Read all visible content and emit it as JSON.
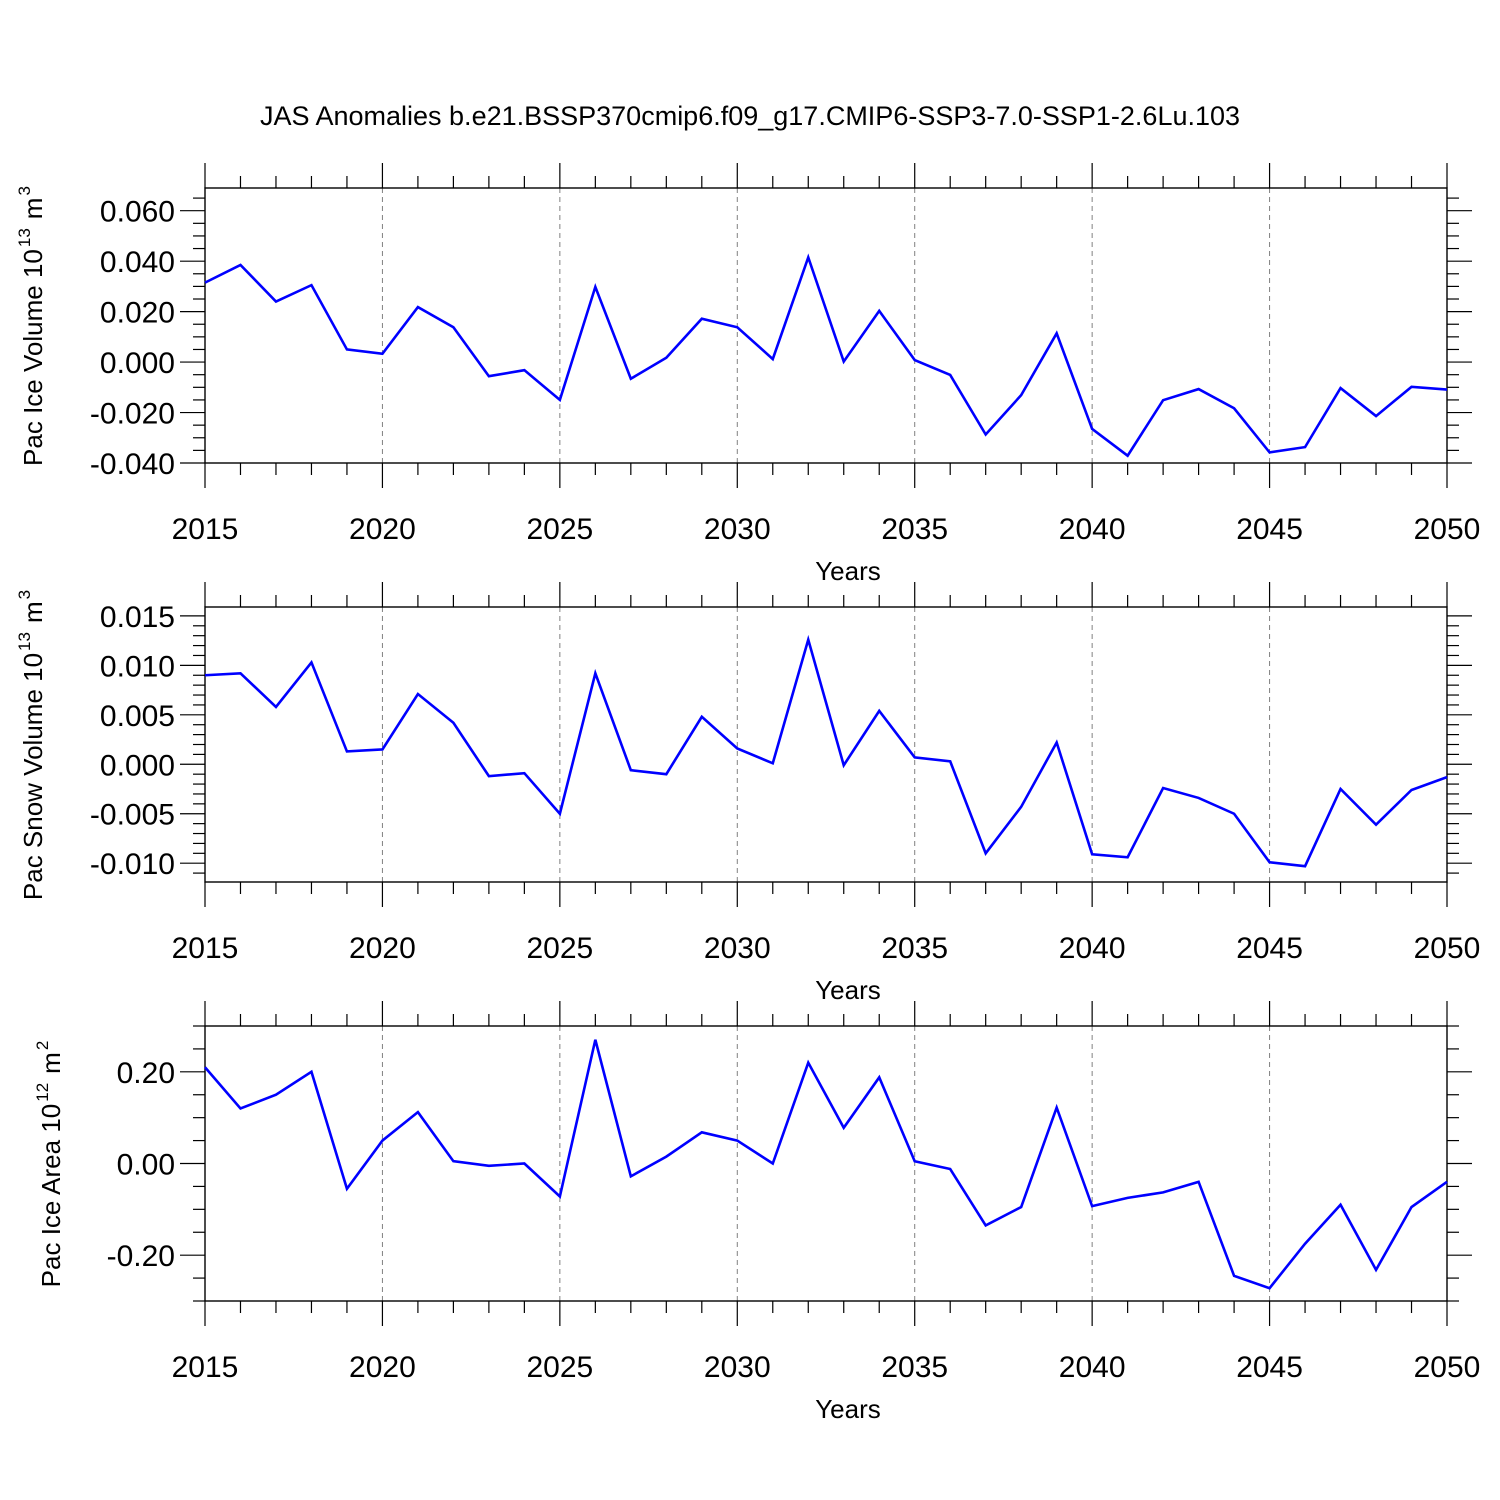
{
  "figure": {
    "title": "JAS Anomalies b.e21.BSSP370cmip6.f09_g17.CMIP6-SSP3-7.0-SSP1-2.6Lu.103"
  },
  "colors": {
    "line": "#0000ff",
    "axis": "#000000",
    "grid": "#808080",
    "background": "#ffffff"
  },
  "chart_data": [
    {
      "type": "line",
      "ylabel_main": "Pac Ice Volume 10",
      "ylabel_exp": "13",
      "ylabel_unit": "m",
      "ylabel_unit_exp": "3",
      "xlabel": "Years",
      "xlim": [
        2015,
        2050
      ],
      "ylim": [
        -0.04,
        0.069
      ],
      "x_ticks": [
        2015,
        2020,
        2025,
        2030,
        2035,
        2040,
        2045,
        2050
      ],
      "y_ticks": [
        -0.04,
        -0.02,
        0.0,
        0.02,
        0.04,
        0.06
      ],
      "y_tick_labels": [
        "-0.040",
        "-0.020",
        "0.000",
        "0.020",
        "0.040",
        "0.060"
      ],
      "y_minor_step": 0.005,
      "x_minor_step": 1,
      "grid": "vertical-dashed-at-major-x",
      "legend": "none",
      "series": [
        {
          "color": "#0000ff",
          "x": [
            2015,
            2016,
            2017,
            2018,
            2019,
            2020,
            2021,
            2022,
            2023,
            2024,
            2025,
            2026,
            2027,
            2028,
            2029,
            2030,
            2031,
            2032,
            2033,
            2034,
            2035,
            2036,
            2037,
            2038,
            2039,
            2040,
            2041,
            2042,
            2043,
            2044,
            2045,
            2046,
            2047,
            2048,
            2049,
            2050
          ],
          "y": [
            0.0315,
            0.0385,
            0.024,
            0.0305,
            0.005,
            0.0033,
            0.0218,
            0.0138,
            -0.0056,
            -0.0032,
            -0.015,
            0.0298,
            -0.0066,
            0.0017,
            0.0172,
            0.0138,
            0.0012,
            0.0415,
            0.0002,
            0.0203,
            0.0008,
            -0.0051,
            -0.0287,
            -0.0131,
            0.0114,
            -0.0265,
            -0.0371,
            -0.0151,
            -0.0107,
            -0.0183,
            -0.0358,
            -0.0337,
            -0.0103,
            -0.0214,
            -0.0098,
            -0.0109
          ]
        }
      ]
    },
    {
      "type": "line",
      "ylabel_main": "Pac Snow Volume 10",
      "ylabel_exp": "13",
      "ylabel_unit": "m",
      "ylabel_unit_exp": "3",
      "xlabel": "Years",
      "xlim": [
        2015,
        2050
      ],
      "ylim": [
        -0.0119,
        0.0159
      ],
      "x_ticks": [
        2015,
        2020,
        2025,
        2030,
        2035,
        2040,
        2045,
        2050
      ],
      "y_ticks": [
        -0.01,
        -0.005,
        0.0,
        0.005,
        0.01,
        0.015
      ],
      "y_tick_labels": [
        "-0.010",
        "-0.005",
        "0.000",
        "0.005",
        "0.010",
        "0.015"
      ],
      "y_minor_step": 0.001,
      "x_minor_step": 1,
      "grid": "vertical-dashed-at-major-x",
      "legend": "none",
      "series": [
        {
          "color": "#0000ff",
          "x": [
            2015,
            2016,
            2017,
            2018,
            2019,
            2020,
            2021,
            2022,
            2023,
            2024,
            2025,
            2026,
            2027,
            2028,
            2029,
            2030,
            2031,
            2032,
            2033,
            2034,
            2035,
            2036,
            2037,
            2038,
            2039,
            2040,
            2041,
            2042,
            2043,
            2044,
            2045,
            2046,
            2047,
            2048,
            2049,
            2050
          ],
          "y": [
            0.009,
            0.0092,
            0.0058,
            0.0103,
            0.0013,
            0.0015,
            0.0071,
            0.0042,
            -0.0012,
            -0.0009,
            -0.005,
            0.0092,
            -0.0006,
            -0.001,
            0.0048,
            0.0016,
            0.0001,
            0.0126,
            -0.0001,
            0.0054,
            0.0007,
            0.0003,
            -0.009,
            -0.0043,
            0.0022,
            -0.0091,
            -0.0094,
            -0.0024,
            -0.0034,
            -0.005,
            -0.0099,
            -0.0103,
            -0.0025,
            -0.0061,
            -0.0026,
            -0.0013
          ]
        }
      ]
    },
    {
      "type": "line",
      "ylabel_main": "Pac Ice Area 10",
      "ylabel_exp": "12",
      "ylabel_unit": "m",
      "ylabel_unit_exp": "2",
      "xlabel": "Years",
      "xlim": [
        2015,
        2050
      ],
      "ylim": [
        -0.3,
        0.3
      ],
      "x_ticks": [
        2015,
        2020,
        2025,
        2030,
        2035,
        2040,
        2045,
        2050
      ],
      "y_ticks": [
        -0.2,
        0.0,
        0.2
      ],
      "y_tick_labels": [
        "-0.20",
        "0.00",
        "0.20"
      ],
      "y_minor_step": 0.05,
      "x_minor_step": 1,
      "grid": "vertical-dashed-at-major-x",
      "legend": "none",
      "series": [
        {
          "color": "#0000ff",
          "x": [
            2015,
            2016,
            2017,
            2018,
            2019,
            2020,
            2021,
            2022,
            2023,
            2024,
            2025,
            2026,
            2027,
            2028,
            2029,
            2030,
            2031,
            2032,
            2033,
            2034,
            2035,
            2036,
            2037,
            2038,
            2039,
            2040,
            2041,
            2042,
            2043,
            2044,
            2045,
            2046,
            2047,
            2048,
            2049,
            2050
          ],
          "y": [
            0.21,
            0.12,
            0.15,
            0.2,
            -0.055,
            0.05,
            0.112,
            0.005,
            -0.005,
            0.0,
            -0.072,
            0.27,
            -0.028,
            0.015,
            0.068,
            0.05,
            0.0,
            0.22,
            0.078,
            0.188,
            0.005,
            -0.012,
            -0.135,
            -0.095,
            0.122,
            -0.093,
            -0.075,
            -0.063,
            -0.04,
            -0.245,
            -0.272,
            -0.175,
            -0.09,
            -0.232,
            -0.095,
            -0.04
          ]
        }
      ]
    }
  ]
}
